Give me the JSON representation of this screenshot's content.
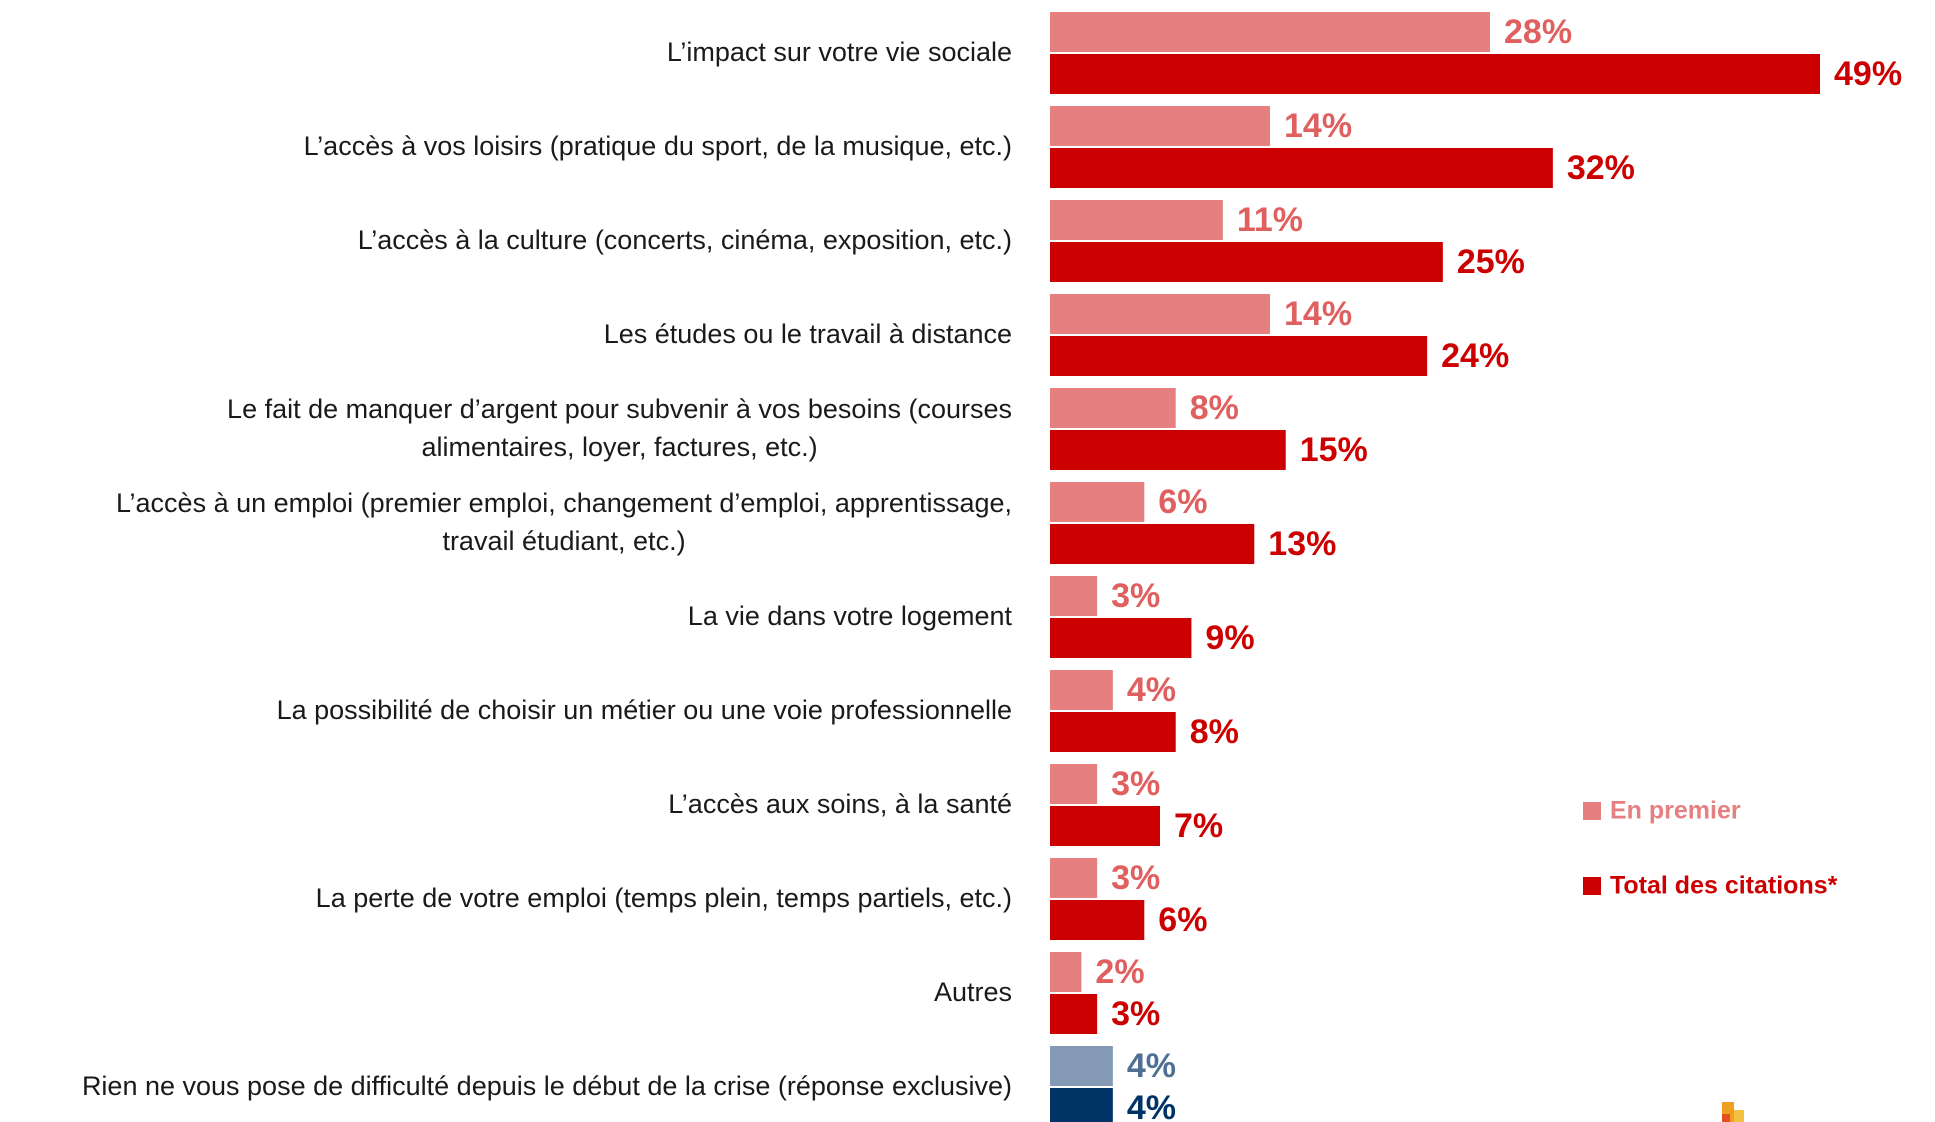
{
  "chart_data": {
    "type": "hbar",
    "categories": [
      "L’impact sur votre vie sociale",
      "L’accès à vos loisirs (pratique du sport, de la musique, etc.)",
      "L’accès à la culture (concerts, cinéma, exposition, etc.)",
      "Les études ou le travail à distance",
      "Le fait de manquer d’argent pour subvenir à vos besoins (courses\nalimentaires, loyer, factures, etc.)",
      "L’accès à un emploi (premier emploi, changement d’emploi, apprentissage,\ntravail étudiant, etc.)",
      "La vie dans votre logement",
      "La possibilité de choisir un métier ou une voie professionnelle",
      "L’accès aux soins, à la santé",
      "La perte de votre emploi (temps plein, temps partiels, etc.)",
      "Autres",
      "Rien ne vous pose de difficulté depuis le début de la crise (réponse exclusive)"
    ],
    "series": [
      {
        "name": "En premier",
        "color": "#e57f80",
        "colors": [
          "#e57f80",
          "#e57f80",
          "#e57f80",
          "#e57f80",
          "#e57f80",
          "#e57f80",
          "#e57f80",
          "#e57f80",
          "#e57f80",
          "#e57f80",
          "#e57f80",
          "#8499b4"
        ],
        "label_colors": [
          "#e06060",
          "#e06060",
          "#e06060",
          "#e06060",
          "#e06060",
          "#e06060",
          "#e06060",
          "#e06060",
          "#e06060",
          "#e06060",
          "#e06060",
          "#4f6f94"
        ],
        "values": [
          28,
          14,
          11,
          14,
          8,
          6,
          3,
          4,
          3,
          3,
          2,
          4
        ],
        "value_labels": [
          "28%",
          "14%",
          "11%",
          "14%",
          "8%",
          "6%",
          "3%",
          "4%",
          "3%",
          "3%",
          "2%",
          "4%"
        ]
      },
      {
        "name": "Total des citations*",
        "color": "#cc0000",
        "colors": [
          "#cc0000",
          "#cc0000",
          "#cc0000",
          "#cc0000",
          "#cc0000",
          "#cc0000",
          "#cc0000",
          "#cc0000",
          "#cc0000",
          "#cc0000",
          "#cc0000",
          "#003366"
        ],
        "label_colors": [
          "#cc0000",
          "#cc0000",
          "#cc0000",
          "#cc0000",
          "#cc0000",
          "#cc0000",
          "#cc0000",
          "#cc0000",
          "#cc0000",
          "#cc0000",
          "#cc0000",
          "#003366"
        ],
        "values": [
          49,
          32,
          25,
          24,
          15,
          13,
          9,
          8,
          7,
          6,
          3,
          4
        ],
        "value_labels": [
          "49%",
          "32%",
          "25%",
          "24%",
          "15%",
          "13%",
          "9%",
          "8%",
          "7%",
          "6%",
          "3%",
          "4%"
        ]
      }
    ],
    "legend": "right"
  }
}
